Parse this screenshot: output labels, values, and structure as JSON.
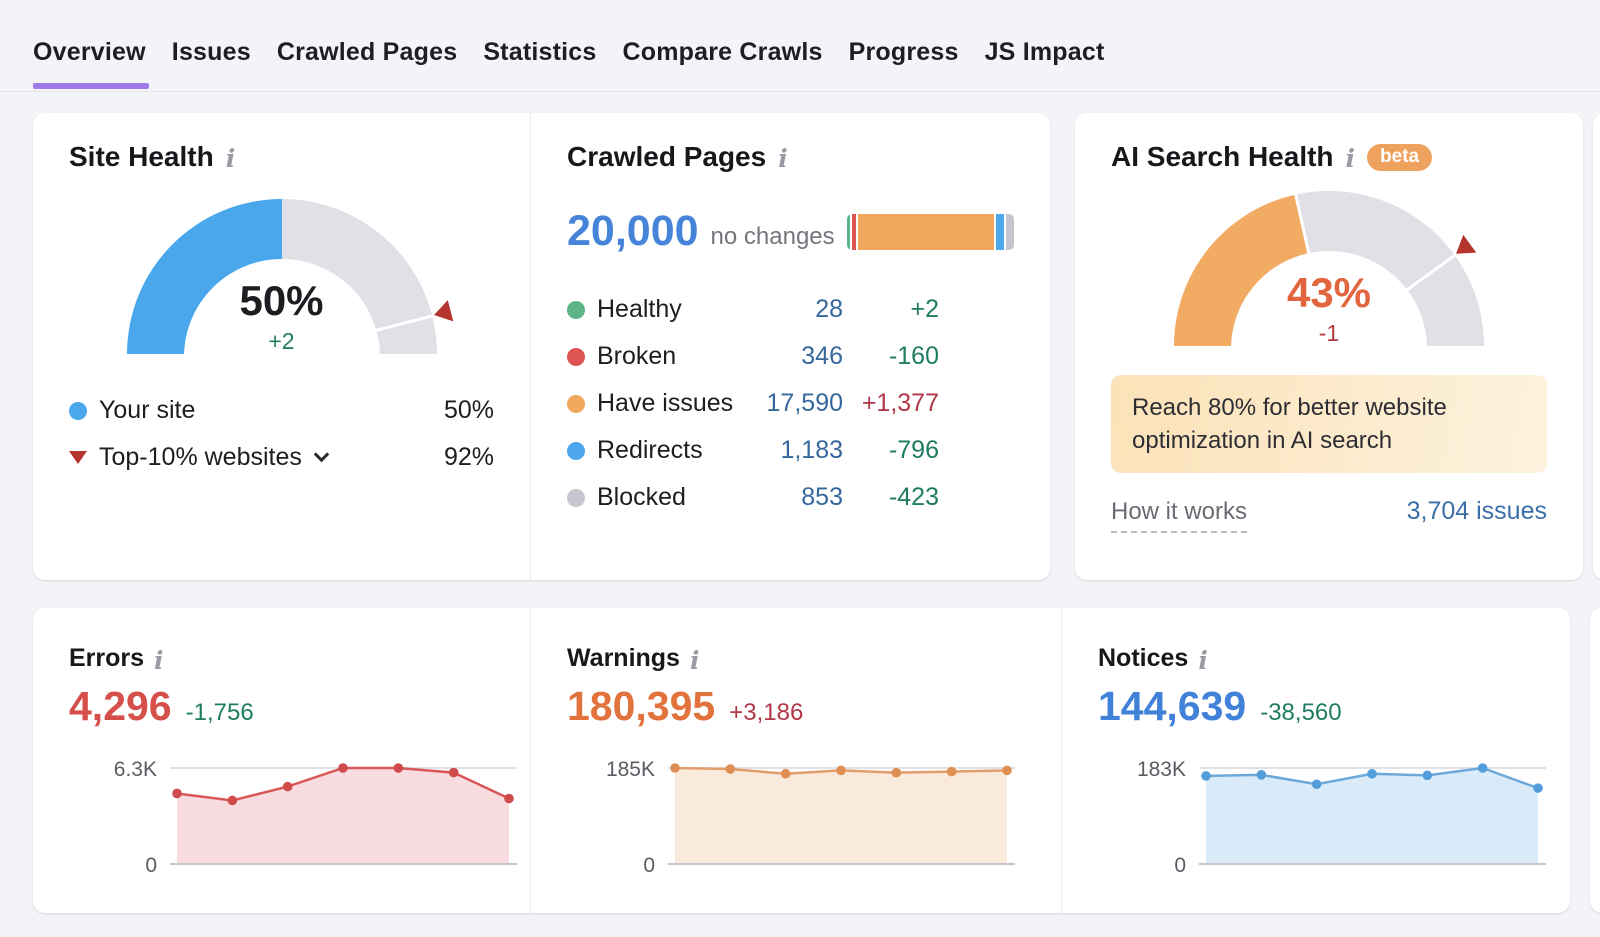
{
  "tabs": [
    {
      "label": "Overview",
      "active": true
    },
    {
      "label": "Issues",
      "active": false
    },
    {
      "label": "Crawled Pages",
      "active": false
    },
    {
      "label": "Statistics",
      "active": false
    },
    {
      "label": "Compare Crawls",
      "active": false
    },
    {
      "label": "Progress",
      "active": false
    },
    {
      "label": "JS Impact",
      "active": false
    }
  ],
  "site_health": {
    "title": "Site Health",
    "gauge": {
      "percent": 50,
      "display": "50%",
      "change": "+2",
      "marker_percent": 92,
      "fill_color": "#4aa7ec",
      "track_color": "#e0e0e6",
      "value_color": "#1c1c21",
      "change_color": "#1f7c62",
      "boundary_notch": false
    },
    "legend": [
      {
        "label": "Your site",
        "value": "50%",
        "marker": "blue-dot",
        "color": "#4aa7ec"
      },
      {
        "label": "Top-10% websites",
        "value": "92%",
        "marker": "red-triangle",
        "color": "#b5342e"
      }
    ]
  },
  "crawled_pages": {
    "title": "Crawled Pages",
    "total": "20,000",
    "note": "no changes",
    "bar_segments": [
      {
        "name": "healthy",
        "color": "#5cb588",
        "flex": 3
      },
      {
        "name": "broken",
        "color": "#dd5454",
        "flex": 4
      },
      {
        "name": "have-issues",
        "color": "#f0a85f",
        "flex": 141
      },
      {
        "name": "redirects",
        "color": "#4da7ec",
        "flex": 9
      },
      {
        "name": "blocked",
        "color": "#c6c6d0",
        "flex": 8
      }
    ],
    "rows": [
      {
        "label": "Healthy",
        "color": "#5cb588",
        "value": "28",
        "change": "+2",
        "trend": "good"
      },
      {
        "label": "Broken",
        "color": "#dd5454",
        "value": "346",
        "change": "-160",
        "trend": "good"
      },
      {
        "label": "Have issues",
        "color": "#f0a85f",
        "value": "17,590",
        "change": "+1,377",
        "trend": "bad"
      },
      {
        "label": "Redirects",
        "color": "#4da7ec",
        "value": "1,183",
        "change": "-796",
        "trend": "good"
      },
      {
        "label": "Blocked",
        "color": "#c6c6d0",
        "value": "853",
        "change": "-423",
        "trend": "good"
      }
    ]
  },
  "ai_search_health": {
    "title": "AI Search Health",
    "badge": "beta",
    "gauge": {
      "percent": 43,
      "display": "43%",
      "change": "-1",
      "marker_percent": 80,
      "fill_color": "#f2ab63",
      "track_color": "#e0e0e6",
      "value_color": "#e2653f",
      "change_color": "#b43c3c",
      "boundary_notch": true
    },
    "notice": "Reach 80% for better website optimization in AI search",
    "how_it_works": "How it works",
    "issues_link": "3,704 issues"
  },
  "metrics": [
    {
      "title": "Errors",
      "value": "4,296",
      "change": "-1,756",
      "trend": "good",
      "accent": "#d5504a"
    },
    {
      "title": "Warnings",
      "value": "180,395",
      "change": "+3,186",
      "trend": "bad",
      "accent": "#e2733d"
    },
    {
      "title": "Notices",
      "value": "144,639",
      "change": "-38,560",
      "trend": "good",
      "accent": "#4181d9"
    }
  ],
  "chart_data": [
    {
      "type": "area",
      "title": "Errors trend",
      "ymax": 6300,
      "ymax_label": "6.3K",
      "ymin_label": "0",
      "values": [
        4630,
        4170,
        5080,
        6300,
        6300,
        6000,
        4296
      ],
      "line_color": "#d95757",
      "dot_color": "#d04c4c",
      "fill_color": "#f9dcdf",
      "axis_color": "#5b5b63"
    },
    {
      "type": "area",
      "title": "Warnings trend",
      "ymax": 185000,
      "ymax_label": "185K",
      "ymin_label": "0",
      "values": [
        185000,
        183000,
        174000,
        180500,
        176000,
        178000,
        180395
      ],
      "line_color": "#e29d6c",
      "dot_color": "#df8f52",
      "fill_color": "#faeadc",
      "axis_color": "#5b5b63"
    },
    {
      "type": "area",
      "title": "Notices trend",
      "ymax": 183000,
      "ymax_label": "183K",
      "ymin_label": "0",
      "values": [
        168000,
        170000,
        152000,
        172000,
        169000,
        183000,
        144639
      ],
      "line_color": "#6ca8da",
      "dot_color": "#539ddb",
      "fill_color": "#d9ebf8",
      "axis_color": "#5b5b63"
    },
    {
      "type": "gauge",
      "title": "Site Health",
      "value": 50,
      "benchmark": 92,
      "unit": "%"
    },
    {
      "type": "gauge",
      "title": "AI Search Health",
      "value": 43,
      "benchmark": 80,
      "unit": "%"
    },
    {
      "type": "stacked-bar",
      "title": "Crawled Pages composition",
      "total": 20000,
      "segments": [
        {
          "label": "Healthy",
          "value": 28
        },
        {
          "label": "Broken",
          "value": 346
        },
        {
          "label": "Have issues",
          "value": 17590
        },
        {
          "label": "Redirects",
          "value": 1183
        },
        {
          "label": "Blocked",
          "value": 853
        }
      ]
    }
  ]
}
